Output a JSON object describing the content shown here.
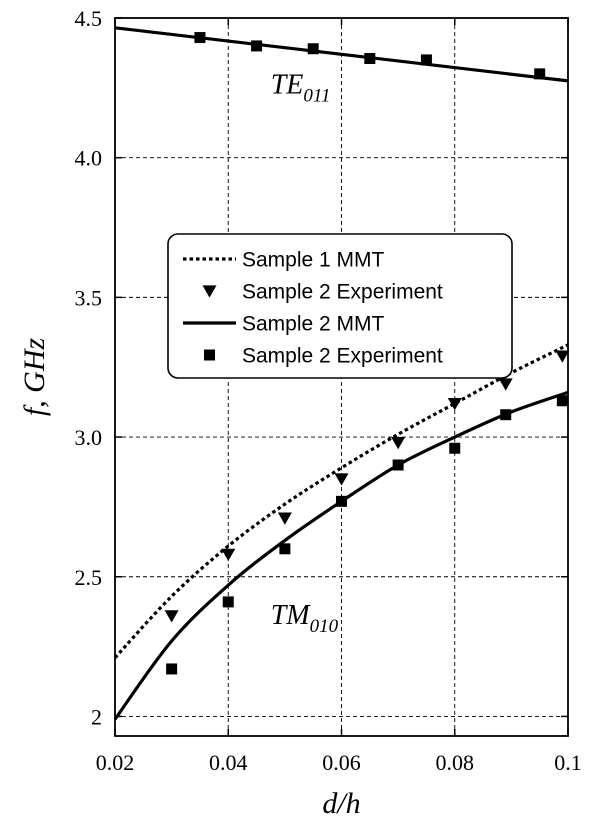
{
  "chart_data": {
    "type": "line",
    "title": "",
    "xlabel": "d/h",
    "ylabel": "f, GHz",
    "xlim": [
      0.02,
      0.1
    ],
    "ylim": [
      1.93,
      4.5
    ],
    "x_ticks": [
      "0.02",
      "0.04",
      "0.06",
      "0.08",
      "0.1"
    ],
    "x_tick_values": [
      0.02,
      0.04,
      0.06,
      0.08,
      0.1
    ],
    "y_ticks": [
      "2",
      "2.5",
      "3.0",
      "3.5",
      "4.0",
      "4.5"
    ],
    "y_tick_values": [
      2.0,
      2.5,
      3.0,
      3.5,
      4.0,
      4.5
    ],
    "grid": true,
    "legend_position": "center-left",
    "series": [
      {
        "name": "Sample 1 MMT",
        "style": "dotted-line",
        "color": "#000000",
        "x": [
          0.02,
          0.03,
          0.04,
          0.05,
          0.06,
          0.07,
          0.08,
          0.09,
          0.1
        ],
        "y": [
          2.21,
          2.43,
          2.61,
          2.76,
          2.89,
          3.01,
          3.12,
          3.23,
          3.33
        ]
      },
      {
        "name": "Sample 2 Experiment",
        "style": "triangle-down-marker",
        "color": "#000000",
        "x": [
          0.03,
          0.04,
          0.05,
          0.06,
          0.07,
          0.08,
          0.089,
          0.099
        ],
        "y": [
          2.36,
          2.58,
          2.71,
          2.85,
          2.98,
          3.12,
          3.19,
          3.29
        ]
      },
      {
        "name": "Sample 2 MMT",
        "style": "solid-line",
        "color": "#000000",
        "x": [
          0.02,
          0.03,
          0.04,
          0.05,
          0.06,
          0.07,
          0.08,
          0.09,
          0.1
        ],
        "y": [
          1.99,
          2.27,
          2.47,
          2.63,
          2.77,
          2.9,
          3.0,
          3.09,
          3.16
        ]
      },
      {
        "name": "Sample 2 Experiment",
        "style": "square-marker",
        "color": "#000000",
        "x": [
          0.03,
          0.04,
          0.05,
          0.06,
          0.07,
          0.08,
          0.089,
          0.099
        ],
        "y": [
          2.17,
          2.41,
          2.6,
          2.77,
          2.9,
          2.96,
          3.08,
          3.13
        ]
      },
      {
        "name": "",
        "style": "solid-line",
        "color": "#000000",
        "x": [
          0.02,
          0.1
        ],
        "y": [
          4.465,
          4.275
        ]
      },
      {
        "name": "",
        "style": "square-marker",
        "color": "#000000",
        "x": [
          0.035,
          0.045,
          0.055,
          0.065,
          0.075,
          0.095
        ],
        "y": [
          4.43,
          4.4,
          4.39,
          4.355,
          4.35,
          4.3
        ]
      }
    ],
    "annotations": [
      {
        "main": "TE",
        "sub": "011",
        "x": 0.0475,
        "y": 4.23
      },
      {
        "main": "TM",
        "sub": "010",
        "x": 0.0475,
        "y": 2.33
      }
    ]
  }
}
